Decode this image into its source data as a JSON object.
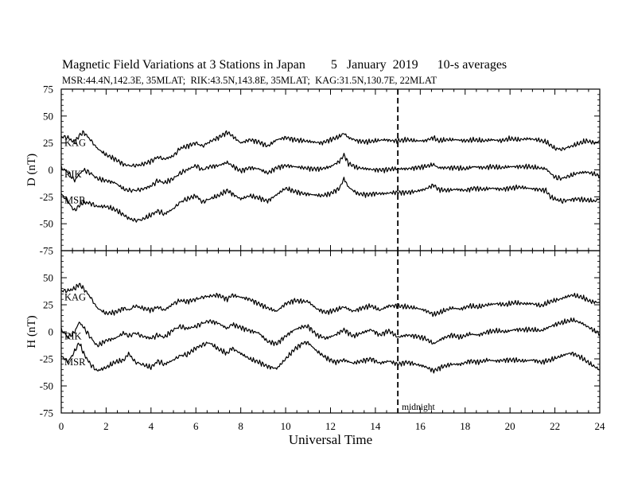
{
  "title": "Magnetic Field Variations at 3 Stations in Japan        5   January  2019      10-s averages",
  "subtitle": "MSR:44.4N,142.3E, 35MLAT;  RIK:43.5N,143.8E, 35MLAT;  KAG:31.5N,130.7E, 22MLAT",
  "chart_data": [
    {
      "type": "line",
      "panel": "D",
      "ylabel": "D (nT)",
      "xlabel": "",
      "xlim": [
        0,
        24
      ],
      "ylim": [
        -75,
        75
      ],
      "yticks": [
        "75",
        "50",
        "25",
        "0",
        "-25",
        "-50",
        "-75"
      ],
      "grid": false,
      "midnight_x": 15,
      "series": [
        {
          "name": "KAG",
          "x": [
            0,
            0.3,
            0.6,
            0.8,
            1,
            1.3,
            1.6,
            2,
            2.4,
            2.8,
            3,
            3.3,
            3.6,
            4,
            4.3,
            4.6,
            5,
            5.3,
            5.6,
            6,
            6.3,
            6.6,
            7,
            7.4,
            7.6,
            8,
            8.4,
            8.8,
            9.2,
            9.6,
            10,
            10.4,
            10.8,
            11.2,
            11.6,
            12,
            12.4,
            12.6,
            12.8,
            13.2,
            13.6,
            14,
            14.4,
            14.8,
            15,
            15.4,
            15.8,
            16.2,
            16.6,
            16.8,
            17.2,
            17.6,
            18,
            18.4,
            18.8,
            19.2,
            19.6,
            20,
            20.4,
            20.8,
            21.2,
            21.6,
            21.8,
            22,
            22.3,
            22.6,
            23,
            23.4,
            23.8,
            24
          ],
          "values": [
            31,
            30,
            25,
            32,
            35,
            28,
            20,
            14,
            10,
            5,
            4,
            4,
            5,
            8,
            12,
            10,
            13,
            20,
            22,
            25,
            22,
            26,
            30,
            35,
            32,
            25,
            28,
            26,
            22,
            28,
            30,
            28,
            27,
            26,
            25,
            28,
            31,
            34,
            30,
            27,
            26,
            27,
            28,
            27,
            27,
            28,
            27,
            27,
            30,
            27,
            28,
            28,
            27,
            28,
            27,
            28,
            27,
            29,
            28,
            29,
            28,
            26,
            23,
            20,
            19,
            21,
            24,
            27,
            25,
            27
          ]
        },
        {
          "name": "RIK",
          "x": [
            0,
            0.3,
            0.6,
            0.8,
            1,
            1.3,
            1.6,
            2,
            2.4,
            2.8,
            3,
            3.3,
            3.6,
            4,
            4.3,
            4.6,
            5,
            5.3,
            5.6,
            6,
            6.3,
            6.6,
            7,
            7.4,
            7.6,
            8,
            8.4,
            8.8,
            9.2,
            9.6,
            10,
            10.4,
            10.8,
            11.2,
            11.6,
            12,
            12.4,
            12.6,
            12.8,
            13.2,
            13.6,
            14,
            14.4,
            14.8,
            15,
            15.4,
            15.8,
            16.2,
            16.6,
            16.8,
            17.2,
            17.6,
            18,
            18.4,
            18.8,
            19.2,
            19.6,
            20,
            20.4,
            20.8,
            21.2,
            21.6,
            21.8,
            22,
            22.3,
            22.6,
            23,
            23.4,
            23.8,
            24
          ],
          "values": [
            2,
            -2,
            -10,
            -4,
            0,
            -3,
            -8,
            -10,
            -12,
            -18,
            -19,
            -19,
            -18,
            -15,
            -10,
            -12,
            -8,
            -3,
            0,
            4,
            0,
            3,
            4,
            7,
            4,
            -1,
            2,
            1,
            -3,
            2,
            4,
            3,
            2,
            1,
            1,
            3,
            8,
            14,
            6,
            2,
            1,
            0,
            0,
            1,
            1,
            1,
            2,
            3,
            5,
            2,
            2,
            2,
            1,
            3,
            2,
            3,
            2,
            3,
            3,
            3,
            2,
            1,
            -3,
            -7,
            -8,
            -6,
            -3,
            -2,
            -4,
            -6
          ]
        },
        {
          "name": "MSR",
          "x": [
            0,
            0.3,
            0.6,
            0.8,
            1,
            1.3,
            1.6,
            2,
            2.4,
            2.8,
            3,
            3.3,
            3.6,
            4,
            4.3,
            4.6,
            5,
            5.3,
            5.6,
            6,
            6.3,
            6.6,
            7,
            7.4,
            7.6,
            8,
            8.4,
            8.8,
            9.2,
            9.6,
            10,
            10.4,
            10.8,
            11.2,
            11.6,
            12,
            12.4,
            12.6,
            12.8,
            13.2,
            13.6,
            14,
            14.4,
            14.8,
            15,
            15.4,
            15.8,
            16.2,
            16.6,
            16.8,
            17.2,
            17.6,
            18,
            18.4,
            18.8,
            19.2,
            19.6,
            20,
            20.4,
            20.8,
            21.2,
            21.6,
            21.8,
            22,
            22.3,
            22.6,
            23,
            23.4,
            23.8,
            24
          ],
          "values": [
            -22,
            -30,
            -38,
            -33,
            -30,
            -31,
            -34,
            -34,
            -37,
            -42,
            -45,
            -47,
            -46,
            -42,
            -38,
            -41,
            -36,
            -30,
            -27,
            -24,
            -30,
            -27,
            -24,
            -19,
            -22,
            -27,
            -24,
            -26,
            -29,
            -23,
            -17,
            -20,
            -22,
            -23,
            -24,
            -22,
            -17,
            -8,
            -16,
            -22,
            -23,
            -22,
            -22,
            -21,
            -21,
            -21,
            -20,
            -18,
            -14,
            -18,
            -19,
            -18,
            -19,
            -17,
            -18,
            -17,
            -18,
            -17,
            -16,
            -17,
            -18,
            -19,
            -25,
            -27,
            -29,
            -28,
            -27,
            -28,
            -29,
            -26
          ]
        }
      ]
    },
    {
      "type": "line",
      "panel": "H",
      "ylabel": "H (nT)",
      "xlabel": "Universal Time",
      "xlim": [
        0,
        24
      ],
      "ylim": [
        -75,
        75
      ],
      "yticks": [
        "50",
        "25",
        "0",
        "-25",
        "-50",
        "-75"
      ],
      "xticks": [
        "0",
        "2",
        "4",
        "6",
        "8",
        "10",
        "12",
        "14",
        "16",
        "18",
        "20",
        "22",
        "24"
      ],
      "grid": false,
      "midnight_x": 15,
      "annotation": "midnight",
      "series": [
        {
          "name": "KAG",
          "x": [
            0,
            0.3,
            0.6,
            0.8,
            1,
            1.3,
            1.6,
            2,
            2.4,
            2.8,
            3,
            3.3,
            3.6,
            4,
            4.3,
            4.6,
            5,
            5.3,
            5.6,
            6,
            6.3,
            6.6,
            7,
            7.4,
            7.6,
            8,
            8.4,
            8.8,
            9.2,
            9.6,
            10,
            10.4,
            10.8,
            11,
            11.4,
            11.8,
            12.2,
            12.6,
            13,
            13.4,
            13.8,
            14.2,
            14.6,
            15,
            15.4,
            15.8,
            16.2,
            16.6,
            17,
            17.4,
            17.8,
            18.2,
            18.6,
            19,
            19.4,
            19.8,
            20.2,
            20.6,
            21,
            21.4,
            21.8,
            22.2,
            22.6,
            22.8,
            23.2,
            23.6,
            24
          ],
          "values": [
            38,
            38,
            40,
            44,
            40,
            32,
            22,
            17,
            18,
            22,
            20,
            24,
            22,
            20,
            23,
            20,
            26,
            29,
            28,
            30,
            32,
            33,
            34,
            30,
            34,
            32,
            30,
            26,
            22,
            19,
            26,
            29,
            28,
            28,
            21,
            18,
            20,
            23,
            19,
            22,
            24,
            20,
            24,
            24,
            23,
            22,
            20,
            16,
            19,
            22,
            21,
            24,
            23,
            25,
            26,
            25,
            27,
            26,
            26,
            24,
            28,
            30,
            33,
            34,
            32,
            28,
            27
          ]
        },
        {
          "name": "RIK",
          "x": [
            0,
            0.3,
            0.6,
            0.8,
            1,
            1.3,
            1.6,
            2,
            2.4,
            2.8,
            3,
            3.3,
            3.6,
            4,
            4.3,
            4.6,
            5,
            5.3,
            5.6,
            6,
            6.3,
            6.6,
            7,
            7.4,
            7.6,
            8,
            8.4,
            8.8,
            9.2,
            9.6,
            10,
            10.4,
            10.8,
            11,
            11.4,
            11.8,
            12.2,
            12.6,
            13,
            13.4,
            13.8,
            14.2,
            14.6,
            15,
            15.4,
            15.8,
            16.2,
            16.6,
            17,
            17.4,
            17.8,
            18.2,
            18.6,
            19,
            19.4,
            19.8,
            20.2,
            20.6,
            21,
            21.4,
            21.8,
            22.2,
            22.6,
            22.8,
            23.2,
            23.6,
            24
          ],
          "values": [
            2,
            -5,
            0,
            9,
            4,
            -5,
            -13,
            -8,
            -6,
            -1,
            -4,
            -1,
            -4,
            -6,
            -3,
            -5,
            2,
            5,
            3,
            5,
            8,
            10,
            8,
            3,
            7,
            4,
            1,
            -1,
            -9,
            -11,
            -4,
            2,
            5,
            5,
            -3,
            -6,
            -3,
            2,
            -4,
            -1,
            2,
            -3,
            1,
            -5,
            -3,
            -4,
            -6,
            -11,
            -6,
            -3,
            -5,
            -2,
            -3,
            0,
            1,
            0,
            2,
            2,
            2,
            1,
            5,
            8,
            10,
            11,
            8,
            3,
            -2
          ]
        },
        {
          "name": "MSR",
          "x": [
            0,
            0.3,
            0.6,
            0.8,
            1,
            1.3,
            1.6,
            2,
            2.4,
            2.8,
            3,
            3.3,
            3.6,
            4,
            4.3,
            4.6,
            5,
            5.3,
            5.6,
            6,
            6.3,
            6.6,
            7,
            7.4,
            7.6,
            8,
            8.4,
            8.8,
            9.2,
            9.6,
            10,
            10.4,
            10.8,
            11,
            11.4,
            11.8,
            12.2,
            12.6,
            13,
            13.4,
            13.8,
            14.2,
            14.6,
            15,
            15.4,
            15.8,
            16.2,
            16.6,
            17,
            17.4,
            17.8,
            18.2,
            18.6,
            19,
            19.4,
            19.8,
            20.2,
            20.6,
            21,
            21.4,
            21.8,
            22.2,
            22.6,
            22.8,
            23.2,
            23.6,
            24
          ],
          "values": [
            -22,
            -28,
            -18,
            -10,
            -20,
            -30,
            -36,
            -33,
            -28,
            -26,
            -20,
            -28,
            -30,
            -33,
            -27,
            -30,
            -26,
            -22,
            -21,
            -15,
            -12,
            -10,
            -16,
            -20,
            -15,
            -20,
            -25,
            -28,
            -32,
            -34,
            -25,
            -16,
            -10,
            -10,
            -18,
            -24,
            -28,
            -26,
            -29,
            -27,
            -25,
            -29,
            -27,
            -30,
            -28,
            -30,
            -32,
            -36,
            -32,
            -30,
            -30,
            -27,
            -28,
            -26,
            -27,
            -26,
            -26,
            -27,
            -26,
            -28,
            -26,
            -23,
            -20,
            -20,
            -24,
            -30,
            -35
          ]
        }
      ]
    }
  ]
}
